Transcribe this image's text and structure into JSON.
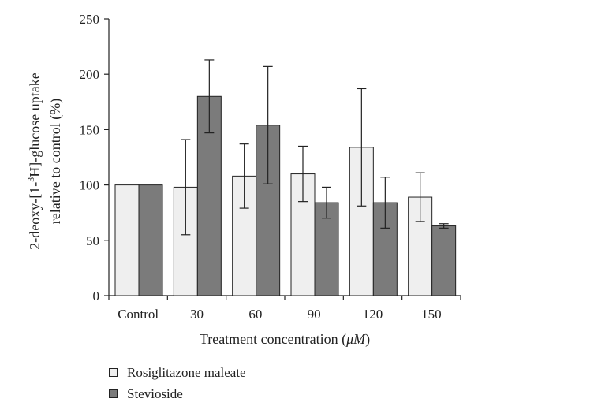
{
  "chart_data": {
    "type": "bar",
    "title": "",
    "xlabel_prefix": "Treatment concentration (",
    "xlabel_unit": "μM",
    "xlabel_suffix": ")",
    "ylabel_line1_prefix": "2-deoxy-[1-",
    "ylabel_line1_sup": "3",
    "ylabel_line1_suffix": "H]-glucose uptake",
    "ylabel_line2": "relative to control (%)",
    "categories": [
      "Control",
      "30",
      "60",
      "90",
      "120",
      "150"
    ],
    "ylim": [
      0,
      250
    ],
    "yticks": [
      0,
      50,
      100,
      150,
      200,
      250
    ],
    "series": [
      {
        "name": "Rosiglitazone maleate",
        "color": "#efefef",
        "values": [
          100,
          98,
          108,
          110,
          134,
          89
        ],
        "errors": [
          0,
          43,
          29,
          25,
          53,
          22
        ]
      },
      {
        "name": "Stevioside",
        "color": "#7b7b7b",
        "values": [
          100,
          180,
          154,
          84,
          84,
          63
        ],
        "errors": [
          0,
          33,
          53,
          14,
          23,
          2
        ]
      }
    ]
  }
}
